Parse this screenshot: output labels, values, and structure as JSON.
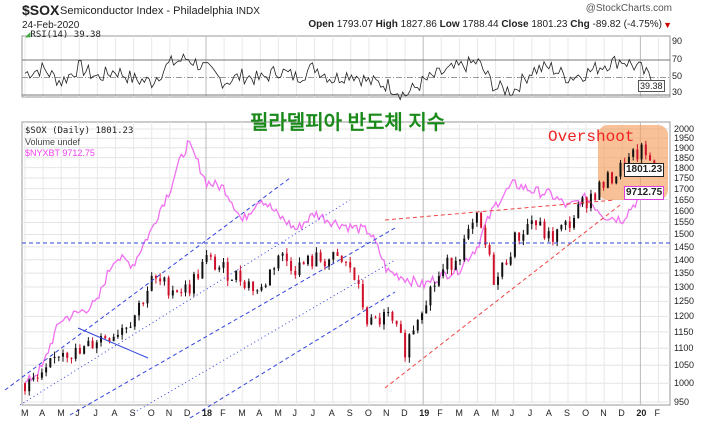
{
  "header": {
    "symbol": "$SOX",
    "name": "Semiconductor Index - Philadelphia",
    "exchange": "INDX",
    "date": "24-Feb-2020",
    "brand": "@StockCharts.com",
    "ohlc": {
      "open_label": "Open",
      "open": "1793.07",
      "high_label": "High",
      "high": "1827.86",
      "low_label": "Low",
      "low": "1788.44",
      "close_label": "Close",
      "close": "1801.23",
      "chg_label": "Chg",
      "chg": "-89.82 (-4.75%)"
    }
  },
  "rsi_panel": {
    "label": "RSI(14) 39.38",
    "value_tag": "39.38",
    "levels": [
      "90",
      "70",
      "50",
      "30"
    ]
  },
  "legend": {
    "main": "$SOX (Daily) 1801.23",
    "volume": "Volume undef",
    "overlay": "$NYXBT 9712.75"
  },
  "annotations": {
    "title_ko": "필라델피아 반도체 지수",
    "overshoot": "Overshoot"
  },
  "tags": {
    "price": "1801.23",
    "overlay": "9712.75"
  },
  "colors": {
    "up": "#111111",
    "down": "#d0102a",
    "overlay": "#f070f0",
    "channel": "#3344dd",
    "trend": "#ee4444",
    "box": "#f5a060",
    "title": "#1a8a1a"
  },
  "chart_data": {
    "type": "candlestick",
    "title": "$SOX Semiconductor Index - Philadelphia",
    "scale": "log",
    "ylim": [
      950,
      2000
    ],
    "yticks": [
      2000,
      1950,
      1900,
      1850,
      1800,
      1750,
      1700,
      1650,
      1600,
      1550,
      1500,
      1450,
      1400,
      1350,
      1300,
      1250,
      1200,
      1150,
      1100,
      1050,
      1000,
      950
    ],
    "x_labels": [
      "M",
      "A",
      "M",
      "J",
      "J",
      "A",
      "S",
      "O",
      "N",
      "D",
      "18",
      "F",
      "M",
      "A",
      "M",
      "J",
      "J",
      "A",
      "S",
      "O",
      "N",
      "D",
      "19",
      "F",
      "M",
      "A",
      "M",
      "J",
      "J",
      "A",
      "S",
      "O",
      "N",
      "D",
      "20",
      "F"
    ],
    "sox_monthly": [
      1000,
      1010,
      1100,
      1080,
      1130,
      1150,
      1200,
      1320,
      1300,
      1290,
      1400,
      1360,
      1330,
      1280,
      1420,
      1370,
      1400,
      1400,
      1370,
      1170,
      1200,
      1100,
      1250,
      1350,
      1430,
      1560,
      1310,
      1470,
      1560,
      1480,
      1540,
      1650,
      1720,
      1800,
      1880,
      1801
    ],
    "nyxbt_monthly": [
      1100,
      1350,
      2300,
      2500,
      2800,
      4700,
      4300,
      6400,
      10000,
      17000,
      11000,
      10300,
      7000,
      9200,
      7500,
      6400,
      7700,
      7000,
      6600,
      6300,
      4000,
      3700,
      3400,
      3800,
      4100,
      5300,
      8500,
      10800,
      10000,
      9600,
      8300,
      9200,
      7500,
      7200,
      9300,
      9712.75
    ],
    "rsi_monthly": [
      55,
      60,
      45,
      62,
      50,
      58,
      48,
      45,
      66,
      72,
      60,
      45,
      52,
      48,
      58,
      50,
      62,
      48,
      55,
      45,
      42,
      30,
      45,
      55,
      62,
      68,
      38,
      35,
      58,
      62,
      50,
      55,
      65,
      70,
      60,
      39.38
    ],
    "horizontal_support": 1460
  }
}
